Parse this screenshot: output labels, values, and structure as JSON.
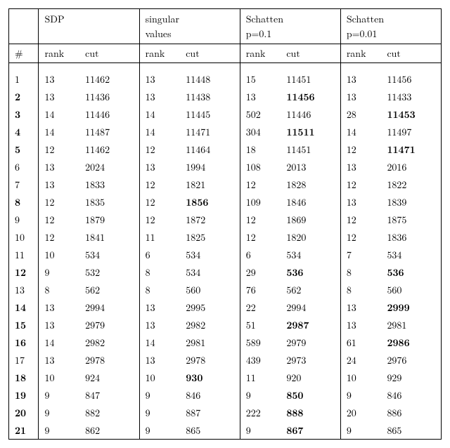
{
  "hdr": {
    "idx": "#",
    "g1t": "SDP",
    "g1b": "",
    "g2t": "singular",
    "g2b": "values",
    "g3t": "Schatten",
    "g3b": "p=0.1",
    "g4t": "Schatten",
    "g4b": "p=0.01",
    "rank": "rank",
    "cut": "cut"
  },
  "rows": [
    {
      "n": "1",
      "nb": false,
      "r1": "13",
      "c1": "11462",
      "c1b": false,
      "r2": "13",
      "c2": "11448",
      "c2b": false,
      "r3": "15",
      "c3": "11451",
      "c3b": false,
      "r4": "13",
      "c4": "11456",
      "c4b": false
    },
    {
      "n": "2",
      "nb": true,
      "r1": "13",
      "c1": "11436",
      "c1b": false,
      "r2": "13",
      "c2": "11438",
      "c2b": false,
      "r3": "13",
      "c3": "11456",
      "c3b": true,
      "r4": "13",
      "c4": "11433",
      "c4b": false
    },
    {
      "n": "3",
      "nb": true,
      "r1": "14",
      "c1": "11446",
      "c1b": false,
      "r2": "14",
      "c2": "11445",
      "c2b": false,
      "r3": "502",
      "c3": "11446",
      "c3b": false,
      "r4": "28",
      "c4": "11453",
      "c4b": true
    },
    {
      "n": "4",
      "nb": true,
      "r1": "14",
      "c1": "11487",
      "c1b": false,
      "r2": "14",
      "c2": "11471",
      "c2b": false,
      "r3": "304",
      "c3": "11511",
      "c3b": true,
      "r4": "14",
      "c4": "11497",
      "c4b": false
    },
    {
      "n": "5",
      "nb": true,
      "r1": "12",
      "c1": "11462",
      "c1b": false,
      "r2": "12",
      "c2": "11464",
      "c2b": false,
      "r3": "18",
      "c3": "11451",
      "c3b": false,
      "r4": "12",
      "c4": "11471",
      "c4b": true
    },
    {
      "n": "6",
      "nb": false,
      "r1": "13",
      "c1": "2024",
      "c1b": false,
      "r2": "13",
      "c2": "1994",
      "c2b": false,
      "r3": "108",
      "c3": "2013",
      "c3b": false,
      "r4": "13",
      "c4": "2016",
      "c4b": false
    },
    {
      "n": "7",
      "nb": false,
      "r1": "13",
      "c1": "1833",
      "c1b": false,
      "r2": "12",
      "c2": "1821",
      "c2b": false,
      "r3": "12",
      "c3": "1828",
      "c3b": false,
      "r4": "12",
      "c4": "1822",
      "c4b": false
    },
    {
      "n": "8",
      "nb": true,
      "r1": "12",
      "c1": "1835",
      "c1b": false,
      "r2": "12",
      "c2": "1856",
      "c2b": true,
      "r3": "109",
      "c3": "1846",
      "c3b": false,
      "r4": "13",
      "c4": "1839",
      "c4b": false
    },
    {
      "n": "9",
      "nb": false,
      "r1": "12",
      "c1": "1879",
      "c1b": false,
      "r2": "12",
      "c2": "1872",
      "c2b": false,
      "r3": "12",
      "c3": "1869",
      "c3b": false,
      "r4": "12",
      "c4": "1875",
      "c4b": false
    },
    {
      "n": "10",
      "nb": false,
      "r1": "12",
      "c1": "1841",
      "c1b": false,
      "r2": "11",
      "c2": "1825",
      "c2b": false,
      "r3": "12",
      "c3": "1820",
      "c3b": false,
      "r4": "12",
      "c4": "1836",
      "c4b": false
    },
    {
      "n": "11",
      "nb": false,
      "r1": "10",
      "c1": "534",
      "c1b": false,
      "r2": "6",
      "c2": "534",
      "c2b": false,
      "r3": "6",
      "c3": "534",
      "c3b": false,
      "r4": "7",
      "c4": "534",
      "c4b": false
    },
    {
      "n": "12",
      "nb": true,
      "r1": "9",
      "c1": "532",
      "c1b": false,
      "r2": "8",
      "c2": "534",
      "c2b": false,
      "r3": "29",
      "c3": "536",
      "c3b": true,
      "r4": "8",
      "c4": "536",
      "c4b": true
    },
    {
      "n": "13",
      "nb": false,
      "r1": "8",
      "c1": "562",
      "c1b": false,
      "r2": "8",
      "c2": "560",
      "c2b": false,
      "r3": "76",
      "c3": "562",
      "c3b": false,
      "r4": "8",
      "c4": "560",
      "c4b": false
    },
    {
      "n": "14",
      "nb": true,
      "r1": "13",
      "c1": "2994",
      "c1b": false,
      "r2": "13",
      "c2": "2995",
      "c2b": false,
      "r3": "22",
      "c3": "2994",
      "c3b": false,
      "r4": "13",
      "c4": "2999",
      "c4b": true
    },
    {
      "n": "15",
      "nb": true,
      "r1": "13",
      "c1": "2979",
      "c1b": false,
      "r2": "13",
      "c2": "2982",
      "c2b": false,
      "r3": "51",
      "c3": "2987",
      "c3b": true,
      "r4": "13",
      "c4": "2981",
      "c4b": false
    },
    {
      "n": "16",
      "nb": true,
      "r1": "14",
      "c1": "2982",
      "c1b": false,
      "r2": "14",
      "c2": "2981",
      "c2b": false,
      "r3": "589",
      "c3": "2979",
      "c3b": false,
      "r4": "61",
      "c4": "2986",
      "c4b": true
    },
    {
      "n": "17",
      "nb": false,
      "r1": "13",
      "c1": "2978",
      "c1b": false,
      "r2": "13",
      "c2": "2978",
      "c2b": false,
      "r3": "439",
      "c3": "2973",
      "c3b": false,
      "r4": "24",
      "c4": "2976",
      "c4b": false
    },
    {
      "n": "18",
      "nb": true,
      "r1": "10",
      "c1": "924",
      "c1b": false,
      "r2": "10",
      "c2": "930",
      "c2b": true,
      "r3": "11",
      "c3": "920",
      "c3b": false,
      "r4": "10",
      "c4": "929",
      "c4b": false
    },
    {
      "n": "19",
      "nb": true,
      "r1": "9",
      "c1": "847",
      "c1b": false,
      "r2": "9",
      "c2": "846",
      "c2b": false,
      "r3": "9",
      "c3": "850",
      "c3b": true,
      "r4": "9",
      "c4": "846",
      "c4b": false
    },
    {
      "n": "20",
      "nb": true,
      "r1": "9",
      "c1": "882",
      "c1b": false,
      "r2": "9",
      "c2": "887",
      "c2b": false,
      "r3": "222",
      "c3": "888",
      "c3b": true,
      "r4": "20",
      "c4": "886",
      "c4b": false
    },
    {
      "n": "21",
      "nb": true,
      "r1": "9",
      "c1": "862",
      "c1b": false,
      "r2": "9",
      "c2": "865",
      "c2b": false,
      "r3": "9",
      "c3": "867",
      "c3b": true,
      "r4": "9",
      "c4": "865",
      "c4b": false
    }
  ]
}
